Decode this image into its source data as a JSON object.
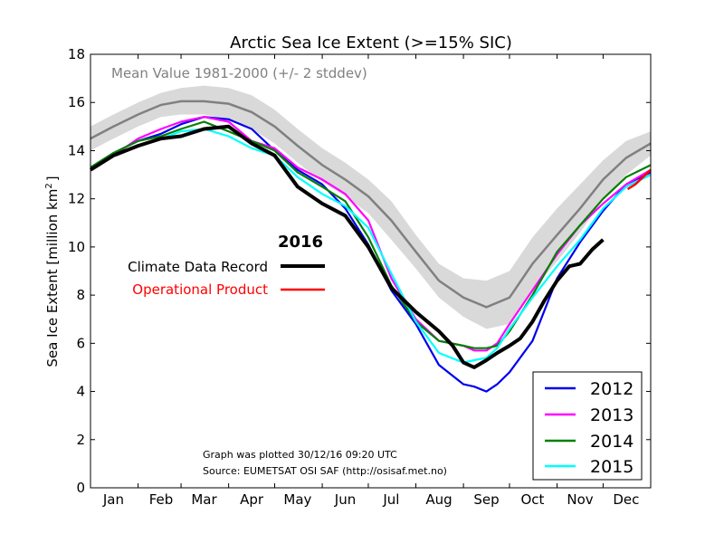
{
  "chart_data": {
    "type": "line",
    "title": "Arctic Sea Ice Extent (>=15% SIC)",
    "ylabel_main": "Sea Ice Extent [million km",
    "ylabel_sup": "2",
    "ylabel_end": "]",
    "ylim": [
      0,
      18
    ],
    "xlim": [
      0,
      365
    ],
    "yticks": [
      0,
      2,
      4,
      6,
      8,
      10,
      12,
      14,
      16,
      18
    ],
    "months": [
      {
        "label": "Jan",
        "day": 15
      },
      {
        "label": "Feb",
        "day": 46
      },
      {
        "label": "Mar",
        "day": 74
      },
      {
        "label": "Apr",
        "day": 105
      },
      {
        "label": "May",
        "day": 135
      },
      {
        "label": "Jun",
        "day": 166
      },
      {
        "label": "Jul",
        "day": 196
      },
      {
        "label": "Aug",
        "day": 227
      },
      {
        "label": "Sep",
        "day": 258
      },
      {
        "label": "Oct",
        "day": 288
      },
      {
        "label": "Nov",
        "day": 319
      },
      {
        "label": "Dec",
        "day": 349
      }
    ],
    "month_boundaries": [
      31,
      59,
      90,
      120,
      151,
      181,
      212,
      243,
      273,
      304,
      334
    ],
    "mean_band": {
      "label": "Mean Value 1981-2000 (+/- 2 stddev)",
      "color": "#808080",
      "band_color": "#d9d9d9",
      "x": [
        0,
        15,
        31,
        46,
        59,
        74,
        90,
        105,
        120,
        135,
        151,
        166,
        181,
        196,
        212,
        227,
        243,
        258,
        273,
        288,
        304,
        319,
        334,
        349,
        365
      ],
      "mean": [
        14.5,
        15.0,
        15.5,
        15.9,
        16.05,
        16.05,
        15.95,
        15.6,
        15.0,
        14.2,
        13.4,
        12.8,
        12.1,
        11.1,
        9.8,
        8.6,
        7.9,
        7.5,
        7.9,
        9.3,
        10.5,
        11.6,
        12.8,
        13.7,
        14.3
      ],
      "upper": [
        15.0,
        15.5,
        16.0,
        16.4,
        16.6,
        16.7,
        16.6,
        16.3,
        15.7,
        14.9,
        14.1,
        13.5,
        12.8,
        11.9,
        10.5,
        9.3,
        8.7,
        8.6,
        9.0,
        10.4,
        11.6,
        12.6,
        13.6,
        14.4,
        14.8
      ],
      "lower": [
        14.0,
        14.5,
        15.0,
        15.4,
        15.5,
        15.5,
        15.3,
        14.9,
        14.3,
        13.5,
        12.7,
        12.1,
        11.4,
        10.3,
        9.1,
        7.9,
        7.1,
        6.6,
        6.8,
        8.2,
        9.4,
        10.6,
        12.0,
        13.0,
        13.8
      ]
    },
    "series": [
      {
        "name": "2012",
        "color": "#0000ee",
        "x": [
          0,
          15,
          31,
          46,
          59,
          74,
          90,
          105,
          120,
          135,
          151,
          166,
          181,
          196,
          212,
          227,
          243,
          250,
          258,
          265,
          273,
          288,
          304,
          319,
          334,
          349,
          365
        ],
        "y": [
          13.3,
          13.9,
          14.4,
          14.7,
          15.1,
          15.4,
          15.3,
          14.9,
          14.0,
          13.2,
          12.6,
          11.6,
          10.1,
          8.2,
          6.8,
          5.1,
          4.3,
          4.2,
          4.0,
          4.3,
          4.8,
          6.1,
          8.7,
          10.2,
          11.5,
          12.6,
          13.1
        ]
      },
      {
        "name": "2013",
        "color": "#ff00ff",
        "x": [
          0,
          15,
          31,
          46,
          59,
          74,
          90,
          105,
          120,
          135,
          151,
          166,
          181,
          196,
          212,
          227,
          243,
          250,
          258,
          265,
          273,
          288,
          304,
          319,
          334,
          349,
          365
        ],
        "y": [
          13.2,
          13.8,
          14.5,
          14.9,
          15.2,
          15.4,
          15.2,
          14.4,
          14.1,
          13.3,
          12.8,
          12.2,
          11.1,
          8.7,
          7.0,
          6.1,
          5.9,
          5.7,
          5.7,
          6.0,
          6.8,
          8.2,
          9.7,
          10.9,
          11.8,
          12.6,
          13.2
        ]
      },
      {
        "name": "2014",
        "color": "#008000",
        "x": [
          0,
          15,
          31,
          46,
          59,
          74,
          90,
          105,
          120,
          135,
          151,
          166,
          181,
          196,
          212,
          227,
          243,
          250,
          258,
          265,
          273,
          288,
          304,
          319,
          334,
          349,
          365
        ],
        "y": [
          13.3,
          13.9,
          14.4,
          14.6,
          14.9,
          15.2,
          14.8,
          14.4,
          14.0,
          13.1,
          12.5,
          11.9,
          10.4,
          8.4,
          6.9,
          6.1,
          5.9,
          5.8,
          5.8,
          5.9,
          6.5,
          8.0,
          9.8,
          10.9,
          12.0,
          12.9,
          13.4
        ]
      },
      {
        "name": "2015",
        "color": "#00ffff",
        "x": [
          0,
          15,
          31,
          46,
          59,
          74,
          90,
          105,
          120,
          135,
          151,
          166,
          181,
          196,
          212,
          227,
          243,
          250,
          258,
          265,
          273,
          288,
          304,
          319,
          334,
          349,
          365
        ],
        "y": [
          13.2,
          13.8,
          14.2,
          14.5,
          14.8,
          14.9,
          14.6,
          14.1,
          13.8,
          12.9,
          12.2,
          11.7,
          10.8,
          8.9,
          6.9,
          5.6,
          5.2,
          5.3,
          5.4,
          5.8,
          6.6,
          7.9,
          9.2,
          10.3,
          11.6,
          12.5,
          13.0
        ]
      },
      {
        "name": "Climate Data Record",
        "color": "#000000",
        "x": [
          0,
          15,
          31,
          46,
          59,
          74,
          90,
          105,
          120,
          135,
          151,
          166,
          181,
          196,
          212,
          227,
          236,
          243,
          250,
          258,
          265,
          273,
          280,
          288,
          296,
          304,
          312,
          319,
          327,
          334
        ],
        "y": [
          13.2,
          13.8,
          14.2,
          14.5,
          14.6,
          14.9,
          15.0,
          14.3,
          13.8,
          12.5,
          11.8,
          11.3,
          10.0,
          8.3,
          7.3,
          6.5,
          5.9,
          5.2,
          5.0,
          5.3,
          5.6,
          5.9,
          6.2,
          6.9,
          7.8,
          8.6,
          9.2,
          9.3,
          9.9,
          10.3
        ]
      },
      {
        "name": "Operational Product",
        "color": "#ff0000",
        "x": [
          350,
          355,
          360,
          365
        ],
        "y": [
          12.4,
          12.6,
          12.9,
          13.2
        ]
      }
    ],
    "legend_2016": {
      "title": "2016",
      "items": [
        {
          "label": "Climate Data Record",
          "color": "#000000"
        },
        {
          "label": "Operational Product",
          "color": "#ff0000"
        }
      ]
    },
    "legend_years": [
      {
        "label": "2012",
        "color": "#0000ee"
      },
      {
        "label": "2013",
        "color": "#ff00ff"
      },
      {
        "label": "2014",
        "color": "#008000"
      },
      {
        "label": "2015",
        "color": "#00ffff"
      }
    ],
    "annotations": {
      "plotted": "Graph was plotted 30/12/16 09:20 UTC",
      "source": "Source: EUMETSAT OSI SAF (http://osisaf.met.no)"
    }
  }
}
